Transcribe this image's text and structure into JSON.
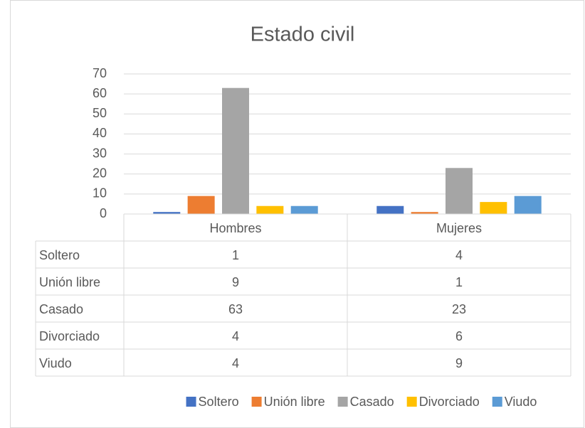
{
  "chart_data": {
    "type": "bar",
    "title": "Estado civil",
    "categories": [
      "Hombres",
      "Mujeres"
    ],
    "series": [
      {
        "name": "Soltero",
        "color": "#4472c4",
        "values": [
          1,
          4
        ]
      },
      {
        "name": "Unión libre",
        "color": "#ed7d31",
        "values": [
          9,
          1
        ]
      },
      {
        "name": "Casado",
        "color": "#a5a5a5",
        "values": [
          63,
          23
        ]
      },
      {
        "name": "Divorciado",
        "color": "#ffc000",
        "values": [
          4,
          6
        ]
      },
      {
        "name": "Viudo",
        "color": "#5b9bd5",
        "values": [
          4,
          9
        ]
      }
    ],
    "ylim": [
      0,
      70
    ],
    "yticks": [
      0,
      10,
      20,
      30,
      40,
      50,
      60,
      70
    ],
    "grid": true,
    "legend": "bottom",
    "data_table": true
  }
}
